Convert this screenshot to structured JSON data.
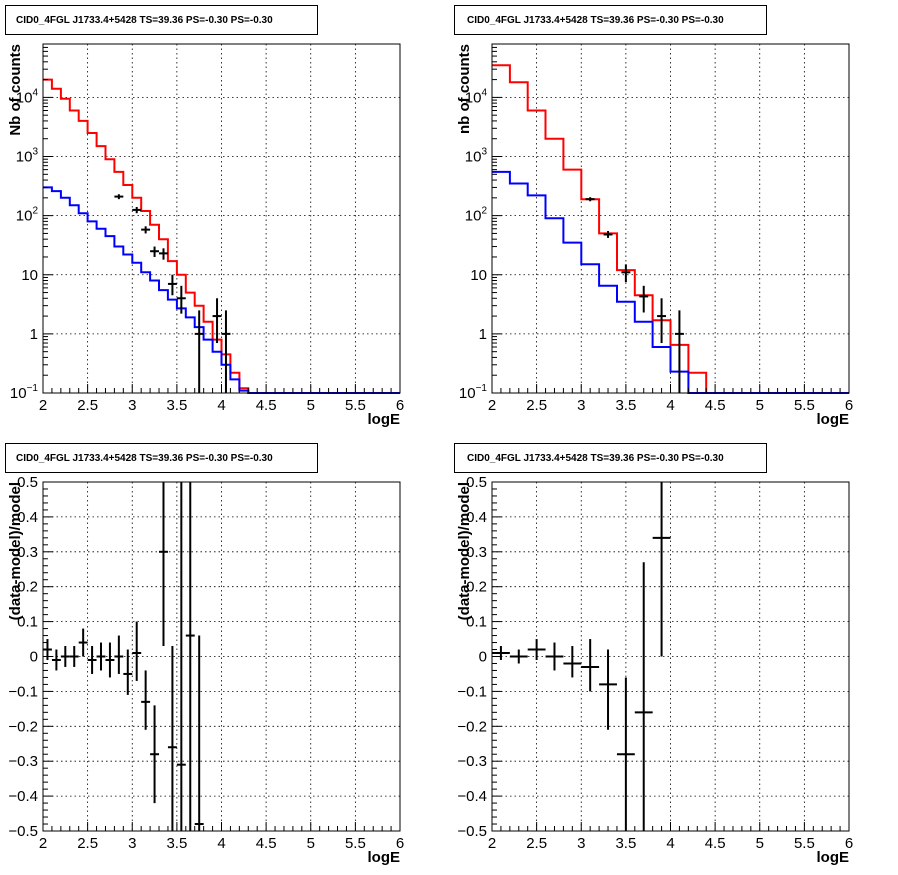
{
  "chart_data": [
    {
      "type": "line",
      "title": "CID0_4FGL J1733.4+5428 TS=39.36 PS=-0.30 PS=-0.30",
      "xlabel": "logE",
      "ylabel": "Nb of counts",
      "xlim": [
        2,
        6
      ],
      "ylim": [
        0.1,
        80000
      ],
      "yscale": "log",
      "grid": true,
      "x_ticks": [
        "2",
        "2.5",
        "3",
        "3.5",
        "4",
        "4.5",
        "5",
        "5.5",
        "6"
      ],
      "y_ticks": [
        {
          "value": 0.1,
          "mant": "10",
          "exp": "−1"
        },
        {
          "value": 1,
          "mant": "1",
          "exp": ""
        },
        {
          "value": 10,
          "mant": "10",
          "exp": ""
        },
        {
          "value": 100,
          "mant": "10",
          "exp": "2"
        },
        {
          "value": 1000,
          "mant": "10",
          "exp": "3"
        },
        {
          "value": 10000,
          "mant": "10",
          "exp": "4"
        }
      ],
      "bin_edges": [
        2.0,
        2.1,
        2.2,
        2.3,
        2.4,
        2.5,
        2.6,
        2.7,
        2.8,
        2.9,
        3.0,
        3.1,
        3.2,
        3.3,
        3.4,
        3.5,
        3.6,
        3.7,
        3.8,
        3.9,
        4.0,
        4.1,
        4.2,
        4.3,
        4.4,
        4.5,
        4.6,
        4.7,
        4.8,
        4.9,
        5.0,
        5.1,
        5.2,
        5.3,
        5.4,
        5.5,
        5.6,
        5.7,
        5.8,
        5.9,
        6.0
      ],
      "series": [
        {
          "color": "#ff0000",
          "values": [
            20000,
            14000,
            9500,
            6000,
            4000,
            2500,
            1500,
            900,
            550,
            330,
            200,
            120,
            70,
            40,
            17,
            10,
            5,
            3,
            1.6,
            0.8,
            0.45,
            0.22,
            0.12,
            0.1,
            0.1,
            0.1,
            0.1,
            0.1,
            0.1,
            0.1,
            0.1,
            0.1,
            0.1,
            0.1,
            0.1,
            0.1,
            0.1,
            0.1,
            0.1,
            0.1
          ]
        },
        {
          "color": "#0000ff",
          "values": [
            300,
            260,
            200,
            150,
            110,
            80,
            60,
            45,
            30,
            22,
            16,
            11,
            8,
            5.5,
            3.8,
            2.7,
            1.9,
            1.3,
            0.8,
            0.5,
            0.3,
            0.17,
            0.11,
            0.1,
            0.1,
            0.1,
            0.1,
            0.1,
            0.1,
            0.1,
            0.1,
            0.1,
            0.1,
            0.1,
            0.1,
            0.1,
            0.1,
            0.1,
            0.1,
            0.1
          ]
        }
      ],
      "points": [
        {
          "x": 2.85,
          "y": 210,
          "lo": 190,
          "hi": 230
        },
        {
          "x": 3.05,
          "y": 125,
          "lo": 110,
          "hi": 140
        },
        {
          "x": 3.15,
          "y": 58,
          "lo": 50,
          "hi": 66
        },
        {
          "x": 3.25,
          "y": 25,
          "lo": 20,
          "hi": 30
        },
        {
          "x": 3.35,
          "y": 23,
          "lo": 18,
          "hi": 28
        },
        {
          "x": 3.45,
          "y": 7,
          "lo": 4.5,
          "hi": 10
        },
        {
          "x": 3.55,
          "y": 4,
          "lo": 2.2,
          "hi": 6.5
        },
        {
          "x": 3.75,
          "y": 1,
          "lo": 0.1,
          "hi": 2.5
        },
        {
          "x": 3.95,
          "y": 2,
          "lo": 0.7,
          "hi": 4
        },
        {
          "x": 4.05,
          "y": 1,
          "lo": 0.1,
          "hi": 2.5
        }
      ]
    },
    {
      "type": "line",
      "title": "CID0_4FGL J1733.4+5428 TS=39.36 PS=-0.30 PS=-0.30",
      "xlabel": "logE",
      "ylabel": "nb of counts",
      "xlim": [
        2,
        6
      ],
      "ylim": [
        0.1,
        80000
      ],
      "yscale": "log",
      "grid": true,
      "x_ticks": [
        "2",
        "2.5",
        "3",
        "3.5",
        "4",
        "4.5",
        "5",
        "5.5",
        "6"
      ],
      "y_ticks": [
        {
          "value": 0.1,
          "mant": "10",
          "exp": "−1"
        },
        {
          "value": 1,
          "mant": "1",
          "exp": ""
        },
        {
          "value": 10,
          "mant": "10",
          "exp": ""
        },
        {
          "value": 100,
          "mant": "10",
          "exp": "2"
        },
        {
          "value": 1000,
          "mant": "10",
          "exp": "3"
        },
        {
          "value": 10000,
          "mant": "10",
          "exp": "4"
        }
      ],
      "bin_edges": [
        2.0,
        2.2,
        2.4,
        2.6,
        2.8,
        3.0,
        3.2,
        3.4,
        3.6,
        3.8,
        4.0,
        4.2,
        4.4,
        4.6,
        4.8,
        5.0,
        5.2,
        5.4,
        5.6,
        5.8,
        6.0
      ],
      "series": [
        {
          "color": "#ff0000",
          "values": [
            35000,
            18000,
            6000,
            2000,
            600,
            190,
            50,
            12,
            4.5,
            1.7,
            0.65,
            0.22,
            0.1,
            0.1,
            0.1,
            0.1,
            0.1,
            0.1,
            0.1,
            0.1
          ]
        },
        {
          "color": "#0000ff",
          "values": [
            550,
            350,
            220,
            90,
            35,
            15,
            6.5,
            3.5,
            1.6,
            0.6,
            0.23,
            0.1,
            0.1,
            0.1,
            0.1,
            0.1,
            0.1,
            0.1,
            0.1,
            0.1
          ]
        }
      ],
      "points": [
        {
          "x": 3.1,
          "y": 190,
          "lo": 175,
          "hi": 205
        },
        {
          "x": 3.3,
          "y": 48,
          "lo": 42,
          "hi": 55
        },
        {
          "x": 3.5,
          "y": 11,
          "lo": 7.5,
          "hi": 15
        },
        {
          "x": 3.7,
          "y": 4.3,
          "lo": 2.3,
          "hi": 6.5
        },
        {
          "x": 3.9,
          "y": 2,
          "lo": 0.7,
          "hi": 4
        },
        {
          "x": 4.1,
          "y": 1,
          "lo": 0.1,
          "hi": 2.5
        }
      ]
    },
    {
      "type": "scatter",
      "title": "CID0_4FGL J1733.4+5428 TS=39.36 PS=-0.30 PS=-0.30",
      "xlabel": "logE",
      "ylabel": "(data-model)/model",
      "xlim": [
        2,
        6
      ],
      "ylim": [
        -0.5,
        0.5
      ],
      "grid": true,
      "x_ticks": [
        "2",
        "2.5",
        "3",
        "3.5",
        "4",
        "4.5",
        "5",
        "5.5",
        "6"
      ],
      "y_ticks": [
        "−0.5",
        "−0.4",
        "−0.3",
        "−0.2",
        "−0.1",
        "0",
        "0.1",
        "0.2",
        "0.3",
        "0.4",
        "0.5"
      ],
      "points": [
        {
          "x": 2.05,
          "y": 0.02,
          "lo": -0.01,
          "hi": 0.05,
          "xerr": 0.05
        },
        {
          "x": 2.15,
          "y": -0.01,
          "lo": -0.04,
          "hi": 0.02,
          "xerr": 0.05
        },
        {
          "x": 2.25,
          "y": 0.0,
          "lo": -0.03,
          "hi": 0.03,
          "xerr": 0.05
        },
        {
          "x": 2.35,
          "y": 0.0,
          "lo": -0.03,
          "hi": 0.03,
          "xerr": 0.05
        },
        {
          "x": 2.45,
          "y": 0.04,
          "lo": 0.0,
          "hi": 0.08,
          "xerr": 0.05
        },
        {
          "x": 2.55,
          "y": -0.01,
          "lo": -0.05,
          "hi": 0.03,
          "xerr": 0.05
        },
        {
          "x": 2.65,
          "y": 0.0,
          "lo": -0.04,
          "hi": 0.04,
          "xerr": 0.05
        },
        {
          "x": 2.75,
          "y": -0.01,
          "lo": -0.06,
          "hi": 0.04,
          "xerr": 0.05
        },
        {
          "x": 2.85,
          "y": 0.0,
          "lo": -0.05,
          "hi": 0.06,
          "xerr": 0.05
        },
        {
          "x": 2.95,
          "y": -0.05,
          "lo": -0.11,
          "hi": 0.02,
          "xerr": 0.05
        },
        {
          "x": 3.05,
          "y": 0.01,
          "lo": -0.07,
          "hi": 0.1,
          "xerr": 0.05
        },
        {
          "x": 3.15,
          "y": -0.13,
          "lo": -0.21,
          "hi": -0.04,
          "xerr": 0.05
        },
        {
          "x": 3.25,
          "y": -0.28,
          "lo": -0.42,
          "hi": -0.14,
          "xerr": 0.05
        },
        {
          "x": 3.35,
          "y": 0.3,
          "lo": 0.03,
          "hi": 0.5,
          "xerr": 0.05
        },
        {
          "x": 3.45,
          "y": -0.26,
          "lo": -0.5,
          "hi": 0.03,
          "xerr": 0.05
        },
        {
          "x": 3.55,
          "y": -0.31,
          "lo": -0.5,
          "hi": 0.5,
          "xerr": 0.05
        },
        {
          "x": 3.65,
          "y": 0.06,
          "lo": -0.5,
          "hi": 0.5,
          "xerr": 0.05
        },
        {
          "x": 3.75,
          "y": -0.48,
          "lo": -0.5,
          "hi": 0.06,
          "xerr": 0.05
        }
      ]
    },
    {
      "type": "scatter",
      "title": "CID0_4FGL J1733.4+5428 TS=39.36 PS=-0.30 PS=-0.30",
      "xlabel": "logE",
      "ylabel": "(data-model)/model",
      "xlim": [
        2,
        6
      ],
      "ylim": [
        -0.5,
        0.5
      ],
      "grid": true,
      "x_ticks": [
        "2",
        "2.5",
        "3",
        "3.5",
        "4",
        "4.5",
        "5",
        "5.5",
        "6"
      ],
      "y_ticks": [
        "−0.5",
        "−0.4",
        "−0.3",
        "−0.2",
        "−0.1",
        "0",
        "0.1",
        "0.2",
        "0.3",
        "0.4",
        "0.5"
      ],
      "points": [
        {
          "x": 2.1,
          "y": 0.01,
          "lo": -0.01,
          "hi": 0.03,
          "xerr": 0.1
        },
        {
          "x": 2.3,
          "y": 0.0,
          "lo": -0.02,
          "hi": 0.02,
          "xerr": 0.1
        },
        {
          "x": 2.5,
          "y": 0.02,
          "lo": -0.01,
          "hi": 0.05,
          "xerr": 0.1
        },
        {
          "x": 2.7,
          "y": 0.0,
          "lo": -0.04,
          "hi": 0.04,
          "xerr": 0.1
        },
        {
          "x": 2.9,
          "y": -0.02,
          "lo": -0.06,
          "hi": 0.03,
          "xerr": 0.1
        },
        {
          "x": 3.1,
          "y": -0.03,
          "lo": -0.1,
          "hi": 0.05,
          "xerr": 0.1
        },
        {
          "x": 3.3,
          "y": -0.08,
          "lo": -0.21,
          "hi": 0.02,
          "xerr": 0.1
        },
        {
          "x": 3.5,
          "y": -0.28,
          "lo": -0.5,
          "hi": -0.06,
          "xerr": 0.1
        },
        {
          "x": 3.7,
          "y": -0.16,
          "lo": -0.5,
          "hi": 0.27,
          "xerr": 0.1
        },
        {
          "x": 3.9,
          "y": 0.34,
          "lo": 0.0,
          "hi": 0.5,
          "xerr": 0.1
        }
      ]
    }
  ]
}
